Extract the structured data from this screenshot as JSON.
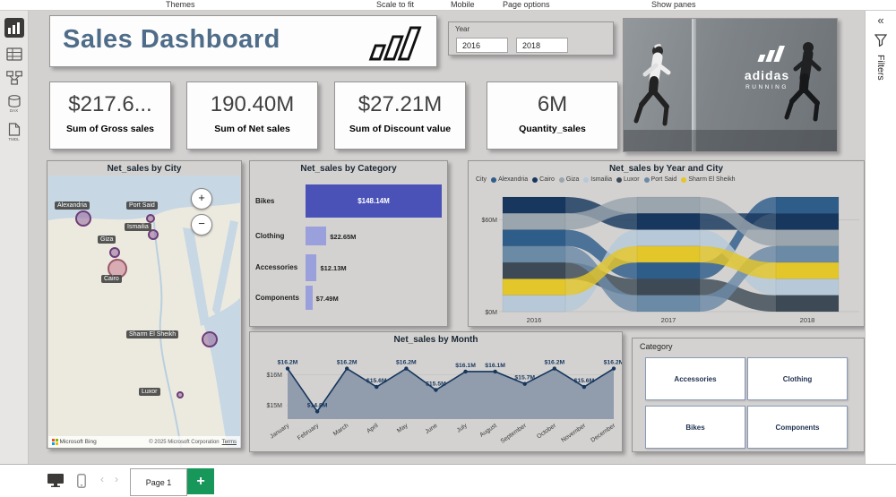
{
  "top_menu": {
    "items": [
      "Themes",
      "Scale to fit",
      "Mobile",
      "Page options",
      "Show panes"
    ]
  },
  "sidebar": {
    "dax_label": "DAX",
    "tmdl_label": "TMDL"
  },
  "header": {
    "title": "Sales Dashboard"
  },
  "year_slicer": {
    "label": "Year",
    "values": [
      "2016",
      "2018"
    ]
  },
  "hero": {
    "brand": "adidas",
    "subtitle": "RUNNING"
  },
  "kpis": [
    {
      "value": "$217.6...",
      "label": "Sum of Gross sales"
    },
    {
      "value": "190.40M",
      "label": "Sum of Net sales"
    },
    {
      "value": "$27.21M",
      "label": "Sum of Discount value"
    },
    {
      "value": "6M",
      "label": "Quantity_sales"
    }
  ],
  "map": {
    "title": "Net_sales by City",
    "cities": [
      "Alexandria",
      "Port Said",
      "Ismailia",
      "Giza",
      "Cairo",
      "Sharm El Sheikh",
      "Luxor"
    ],
    "zoom_in": "+",
    "zoom_out": "−",
    "bing_label": "Microsoft Bing",
    "copyright": "© 2025 Microsoft Corporation",
    "terms_label": "Terms"
  },
  "chart_data": [
    {
      "type": "bar",
      "title": "Net_sales by Category",
      "categories": [
        "Bikes",
        "Clothing",
        "Accessories",
        "Components"
      ],
      "values": [
        148.14,
        22.65,
        12.13,
        7.49
      ],
      "labels": [
        "$148.14M",
        "$22.65M",
        "$12.13M",
        "$7.49M"
      ],
      "max_bar_color": "#4a52b8",
      "bar_color": "#9aa0dc"
    },
    {
      "type": "ribbon",
      "title": "Net_sales by Year and City",
      "legend_title": "City",
      "years": [
        "2016",
        "2017",
        "2018"
      ],
      "y_ticks": [
        "$60M",
        "$0M"
      ],
      "series": [
        {
          "name": "Alexandria",
          "color": "#2f5d8a"
        },
        {
          "name": "Cairo",
          "color": "#17375e"
        },
        {
          "name": "Giza",
          "color": "#9aa5ad"
        },
        {
          "name": "Ismailia",
          "color": "#b7c9d9"
        },
        {
          "name": "Luxor",
          "color": "#3d4a56"
        },
        {
          "name": "Port Said",
          "color": "#6b8aa6"
        },
        {
          "name": "Sharm El Sheikh",
          "color": "#e3c629"
        }
      ],
      "year_orders": [
        [
          "Cairo",
          "Giza",
          "Alexandria",
          "Port Said",
          "Luxor",
          "Sharm El Sheikh",
          "Ismailia"
        ],
        [
          "Giza",
          "Cairo",
          "Ismailia",
          "Sharm El Sheikh",
          "Alexandria",
          "Luxor",
          "Port Said"
        ],
        [
          "Alexandria",
          "Cairo",
          "Giza",
          "Port Said",
          "Sharm El Sheikh",
          "Ismailia",
          "Luxor"
        ]
      ]
    },
    {
      "type": "line",
      "title": "Net_sales by Month",
      "categories": [
        "January",
        "February",
        "March",
        "April",
        "May",
        "June",
        "July",
        "August",
        "September",
        "October",
        "November",
        "December"
      ],
      "values": [
        16.2,
        14.8,
        16.2,
        15.6,
        16.2,
        15.5,
        16.1,
        16.1,
        15.7,
        16.2,
        15.6,
        16.2
      ],
      "labels": [
        "$16.2M",
        "$14.8M",
        "$16.2M",
        "$15.6M",
        "$16.2M",
        "$15.5M",
        "$16.1M",
        "$16.1M",
        "$15.7M",
        "$16.2M",
        "$15.6M",
        "$16.2M"
      ],
      "y_ticks": [
        "$16M",
        "$15M"
      ],
      "ylim": [
        14.55,
        16.45
      ],
      "line_color": "#16365c",
      "area_color": "#8a96a9"
    }
  ],
  "category_slicer": {
    "title": "Category",
    "options": [
      "Accessories",
      "Clothing",
      "Bikes",
      "Components"
    ]
  },
  "filters_pane": {
    "label": "Filters",
    "collapse_glyph": "«"
  },
  "bottom_bar": {
    "page_tab": "Page 1",
    "add_page_label": "+"
  },
  "colors": {
    "plus_green": "#17975a",
    "title_blue": "#4f6d89"
  }
}
